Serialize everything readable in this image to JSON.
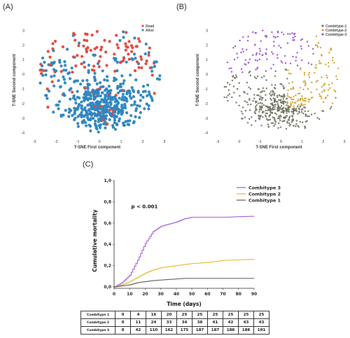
{
  "panels": {
    "a_label": "(A)",
    "b_label": "(B)",
    "c_label": "(C)"
  },
  "chart_data": [
    {
      "type": "scatter",
      "panel": "A",
      "xlabel": "T-SNE First component",
      "ylabel": "T-SNE Second component",
      "xlim": [
        -3.3,
        3.1
      ],
      "ylim": [
        -4.3,
        3.5
      ],
      "xticks": [
        -3,
        -2,
        -1,
        0,
        1,
        2,
        3
      ],
      "yticks": [
        -4,
        -3,
        -2,
        -1,
        0,
        1,
        2,
        3
      ],
      "legend_position": "top-right",
      "series": [
        {
          "name": "Dead",
          "color": "#e8473a"
        },
        {
          "name": "Alive",
          "color": "#2e86c1"
        }
      ],
      "note": "~600 points; Dead concentrated in upper half (y > 0)"
    },
    {
      "type": "scatter",
      "panel": "B",
      "xlabel": "T-SNE First component",
      "ylabel": "T-SNE Second component",
      "xlim": [
        -3.3,
        3.1
      ],
      "ylim": [
        -4.3,
        3.5
      ],
      "xticks": [
        -3,
        -2,
        -1,
        0,
        1,
        2,
        3
      ],
      "yticks": [
        -4,
        -3,
        -2,
        -1,
        0,
        1,
        2,
        3
      ],
      "legend_position": "top-right",
      "series": [
        {
          "name": "Combitype-1",
          "color": "#6e7463"
        },
        {
          "name": "Combitype-2",
          "color": "#d4a22c"
        },
        {
          "name": "Combitype-3",
          "color": "#a04bd6"
        }
      ]
    },
    {
      "type": "line",
      "panel": "C",
      "xlabel": "Time (days)",
      "ylabel": "Cumulative mortality",
      "xlim": [
        0,
        90
      ],
      "ylim": [
        0,
        1.0
      ],
      "xticks": [
        0,
        10,
        20,
        30,
        40,
        50,
        60,
        70,
        80,
        90
      ],
      "yticks": [
        "0,0",
        "0,2",
        "0,4",
        "0,6",
        "0,8",
        "1,0"
      ],
      "annotation": "p < 0.001",
      "legend_position": "top-right",
      "series": [
        {
          "name": "Combitype 3",
          "color": "#9b4fd6",
          "x": [
            0,
            5,
            10,
            15,
            20,
            25,
            30,
            35,
            40,
            45,
            50,
            60,
            70,
            80,
            90
          ],
          "values": [
            0,
            0.04,
            0.11,
            0.25,
            0.41,
            0.52,
            0.57,
            0.59,
            0.61,
            0.64,
            0.655,
            0.655,
            0.655,
            0.66,
            0.665
          ]
        },
        {
          "name": "Combitype 2",
          "color": "#e6b422",
          "x": [
            0,
            5,
            10,
            15,
            20,
            25,
            30,
            35,
            40,
            45,
            50,
            60,
            70,
            80,
            90
          ],
          "values": [
            0,
            0.02,
            0.05,
            0.09,
            0.13,
            0.16,
            0.18,
            0.19,
            0.2,
            0.21,
            0.22,
            0.23,
            0.25,
            0.255,
            0.26
          ]
        },
        {
          "name": "Combitype 1",
          "color": "#555555",
          "x": [
            0,
            5,
            10,
            15,
            20,
            25,
            30,
            35,
            40,
            45,
            50,
            60,
            70,
            80,
            90
          ],
          "values": [
            0,
            0.01,
            0.02,
            0.04,
            0.05,
            0.06,
            0.065,
            0.07,
            0.075,
            0.08,
            0.08,
            0.08,
            0.08,
            0.08,
            0.08
          ]
        }
      ]
    }
  ],
  "risk_table": {
    "rows": [
      {
        "label": "Combitype 1",
        "values": [
          "0",
          "4",
          "16",
          "20",
          "25",
          "25",
          "25",
          "25",
          "25",
          "25"
        ]
      },
      {
        "label": "Combitype 2",
        "values": [
          "0",
          "11",
          "24",
          "33",
          "34",
          "38",
          "41",
          "42",
          "43",
          "43"
        ]
      },
      {
        "label": "Combitype 3",
        "values": [
          "0",
          "42",
          "110",
          "162",
          "175",
          "187",
          "187",
          "188",
          "188",
          "191"
        ]
      }
    ]
  }
}
